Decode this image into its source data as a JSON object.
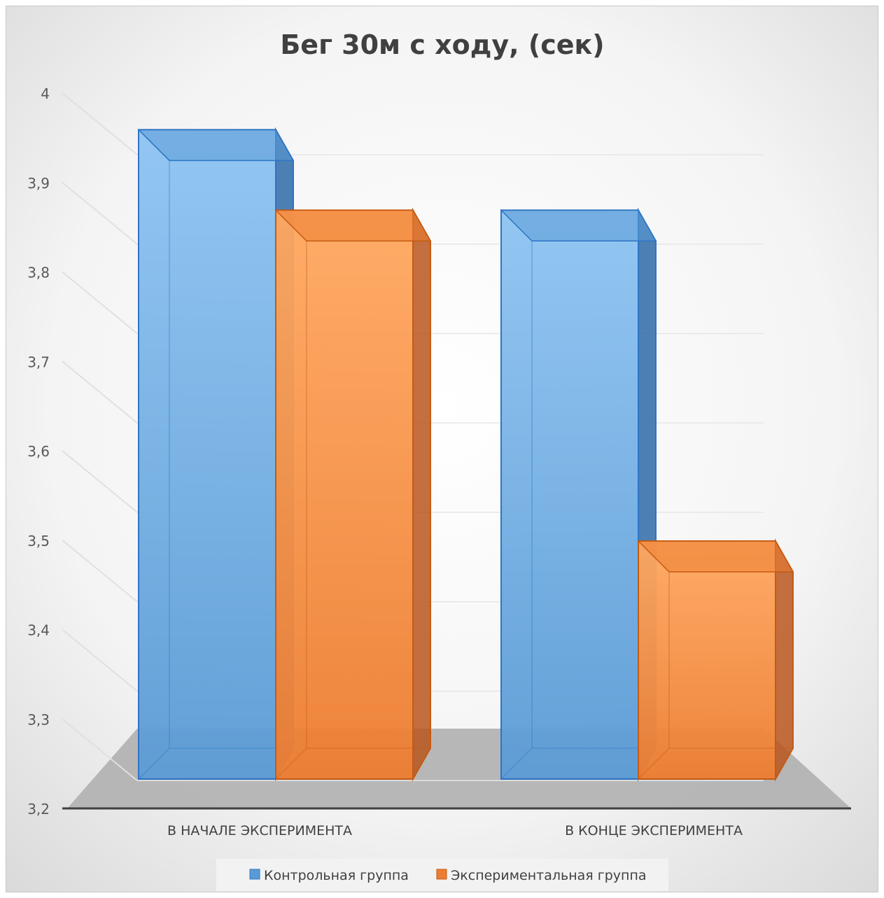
{
  "chart_data": {
    "type": "bar",
    "title": "Бег 30м с ходу, (сек)",
    "categories": [
      "В НАЧАЛЕ ЭКСПЕРИМЕНТА",
      "В КОНЦЕ ЭКСПЕРИМЕНТА"
    ],
    "series": [
      {
        "name": "Контрольная группа",
        "values": [
          3.97,
          3.88
        ],
        "color": "#5b9bd5"
      },
      {
        "name": "Экспериментальная группа",
        "values": [
          3.88,
          3.51
        ],
        "color": "#ed7d31"
      }
    ],
    "y_ticks": [
      "3,2",
      "3,3",
      "3,4",
      "3,5",
      "3,6",
      "3,7",
      "3,8",
      "3,9",
      "4"
    ],
    "ylim": [
      3.2,
      4.0
    ],
    "grid": true,
    "legend_position": "bottom",
    "style": "3d-clustered-column"
  }
}
